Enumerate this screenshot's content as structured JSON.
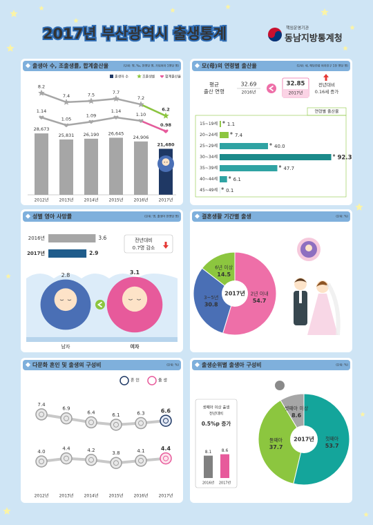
{
  "header": {
    "title": "2017년 부산광역시 출생통계",
    "agency_tag": "책임운영기관",
    "agency": "동남지방통계청"
  },
  "chart_data": [
    {
      "type": "combo",
      "title": "출생아 수, 조출생률, 합계출산율",
      "unit": "(단위: 명, ‰, 천명당 명, 가임여자 1명당 명)",
      "categories": [
        "2012년",
        "2013년",
        "2014년",
        "2015년",
        "2016년",
        "2017년"
      ],
      "series": [
        {
          "name": "출생아 수",
          "type": "bar",
          "color": "#1f3864",
          "colors": [
            "#a6a6a6",
            "#a6a6a6",
            "#a6a6a6",
            "#a6a6a6",
            "#a6a6a6",
            "#1f3864"
          ],
          "values": [
            28673,
            25831,
            26190,
            26645,
            24906,
            21480
          ],
          "value_labels": [
            "28,673",
            "25,831",
            "26,190",
            "26,645",
            "24,906",
            "21,480"
          ]
        },
        {
          "name": "조출생률",
          "type": "line",
          "color": "#8cc63f",
          "colors": [
            "#a6a6a6",
            "#a6a6a6",
            "#a6a6a6",
            "#a6a6a6",
            "#a6a6a6",
            "#8cc63f"
          ],
          "values": [
            8.2,
            7.4,
            7.5,
            7.7,
            7.2,
            6.2
          ],
          "value_labels": [
            "8.2",
            "7.4",
            "7.5",
            "7.7",
            "7.2",
            "6.2"
          ]
        },
        {
          "name": "합계출산율",
          "type": "line",
          "color": "#e75a9b",
          "colors": [
            "#a6a6a6",
            "#a6a6a6",
            "#a6a6a6",
            "#a6a6a6",
            "#a6a6a6",
            "#e75a9b"
          ],
          "values": [
            1.14,
            1.05,
            1.09,
            1.14,
            1.1,
            0.98
          ],
          "value_labels": [
            "1.14",
            "1.05",
            "1.09",
            "1.14",
            "1.10",
            "0.98"
          ]
        }
      ]
    },
    {
      "type": "hbar",
      "title": "모(母)의 연령별 출산율",
      "unit": "(단위: 세, 해당연령 여자인구 1천 명당 명)",
      "mean_age": {
        "label": [
          "평균",
          "출산 연령"
        ],
        "years": [
          "2016년",
          "2017년"
        ],
        "values": [
          32.69,
          32.85
        ],
        "change": [
          "전년대비",
          "0.16세 증가"
        ]
      },
      "series_name": "연령별 출산율",
      "categories": [
        "15~19세",
        "20~24세",
        "25~29세",
        "30~34세",
        "35~39세",
        "40~44세",
        "45~49세"
      ],
      "values": [
        1.1,
        7.4,
        40.0,
        92.3,
        47.7,
        6.1,
        0.1
      ],
      "value_labels": [
        "1.1",
        "7.4",
        "40.0",
        "92.3",
        "47.7",
        "6.1",
        "0.1"
      ],
      "colors": [
        "#8cc63f",
        "#8cc63f",
        "#2fa3a3",
        "#1b8a8a",
        "#2fa3a3",
        "#2fa3a3",
        "#2fa3a3"
      ]
    },
    {
      "type": "hbar",
      "title": "성별 영아 사망률",
      "unit": "(단위: 명, 출생아 천명당 명)",
      "categories": [
        "2016년",
        "2017년"
      ],
      "values": [
        3.6,
        2.9
      ],
      "colors": [
        "#a6a6a6",
        "#1f5c8b"
      ],
      "change": [
        "전년대비",
        "0.7명 감소"
      ],
      "by_sex": {
        "categories": [
          "남자",
          "여자"
        ],
        "values": [
          2.8,
          3.1
        ],
        "colors": [
          "#4a6fb5",
          "#e75a9b"
        ]
      }
    },
    {
      "type": "pie",
      "title": "결혼생활 기간별 출생",
      "unit": "(단위: %)",
      "center_label": "2017년",
      "categories": [
        "2년 이내",
        "3~5년",
        "6년 이상"
      ],
      "values": [
        54.7,
        30.8,
        14.5
      ],
      "colors": [
        "#ee6fa8",
        "#4a6fb5",
        "#8cc63f"
      ]
    },
    {
      "type": "line",
      "title": "다문화 혼인 및 출생의 구성비",
      "unit": "(단위: %)",
      "categories": [
        "2012년",
        "2013년",
        "2014년",
        "2015년",
        "2016년",
        "2017년"
      ],
      "series": [
        {
          "name": "혼 인",
          "color": "#1f3864",
          "values": [
            7.4,
            6.9,
            6.4,
            6.1,
            6.3,
            6.6
          ],
          "value_labels": [
            "7.4",
            "6.9",
            "6.4",
            "6.1",
            "6.3",
            "6.6"
          ]
        },
        {
          "name": "출 생",
          "color": "#e75a9b",
          "values": [
            4.0,
            4.4,
            4.2,
            3.8,
            4.1,
            4.4
          ],
          "value_labels": [
            "4.0",
            "4.4",
            "4.2",
            "3.8",
            "4.1",
            "4.4"
          ]
        }
      ]
    },
    {
      "type": "pie",
      "title": "출생순위별 출생아 구성비",
      "unit": "(단위: %)",
      "center_label": "2017년",
      "categories": [
        "첫째아",
        "둘째아",
        "셋째아 이상"
      ],
      "values": [
        53.7,
        37.7,
        8.6
      ],
      "colors": [
        "#14a59b",
        "#8cc63f",
        "#a6a6a6"
      ],
      "inset": {
        "title": [
          "셋째아 이상 출생",
          "전년대비"
        ],
        "change": "0.5%p 증가",
        "categories": [
          "2016년",
          "2017년"
        ],
        "values": [
          8.1,
          8.6
        ],
        "colors": [
          "#808080",
          "#e75a9b"
        ]
      }
    }
  ]
}
